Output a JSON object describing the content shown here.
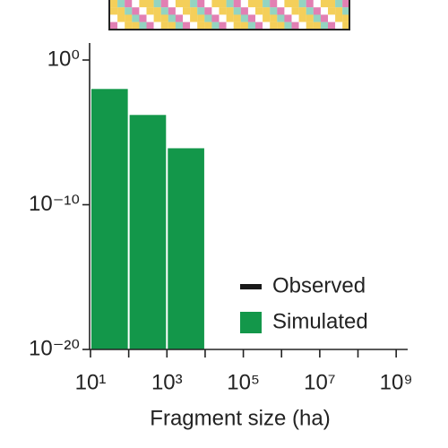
{
  "chart_data": {
    "type": "histogram",
    "x_label": "Fragment size (ha)",
    "bins": [
      10,
      100,
      1000,
      10000
    ],
    "series": [
      {
        "name": "Observed",
        "color": "#1a1a1a",
        "values": []
      },
      {
        "name": "Simulated",
        "color": "#13974a",
        "values": [
          0.01,
          0.00016,
          8e-07
        ]
      }
    ],
    "log_x": true,
    "log_y": true,
    "xlim": [
      10,
      2000000000
    ],
    "ylim": [
      1e-20,
      15
    ],
    "xticks": [
      {
        "value": 10,
        "label": "10¹"
      },
      {
        "value": 1000,
        "label": "10³"
      },
      {
        "value": 100000,
        "label": "10⁵"
      },
      {
        "value": 10000000,
        "label": "10⁷"
      },
      {
        "value": 1000000000,
        "label": "10⁹"
      }
    ],
    "xminor_ticks": [
      100,
      10000,
      1000000,
      100000000
    ],
    "yticks": [
      {
        "value": 1,
        "label": "10⁰"
      },
      {
        "value": 1e-10,
        "label": "10⁻¹⁰"
      },
      {
        "value": 1e-20,
        "label": "10⁻²⁰"
      }
    ],
    "legend": "lower right",
    "grid": false
  }
}
